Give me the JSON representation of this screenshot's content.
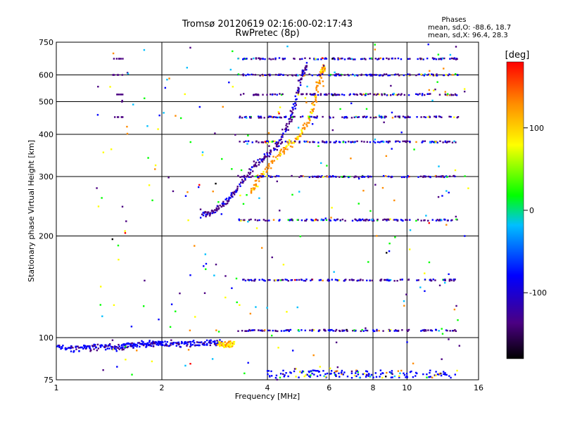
{
  "chart_data": {
    "type": "scatter",
    "title": "Tromsø 20120619 02:16:00-02:17:43",
    "subtitle": "RwPretec (8p)",
    "xlabel": "Frequency [MHz]",
    "ylabel": "Stationary phase Virtual Height [km]",
    "xscale": "log",
    "yscale": "log",
    "xlim": [
      1,
      16
    ],
    "ylim": [
      75,
      750
    ],
    "xticks": [
      1,
      2,
      4,
      6,
      8,
      10,
      16
    ],
    "yticks": [
      75,
      100,
      200,
      300,
      400,
      500,
      600,
      750
    ],
    "xgrid": [
      2,
      4,
      6,
      8,
      10
    ],
    "ygrid": [
      100,
      200,
      300,
      400,
      500,
      600
    ],
    "grid": true,
    "info": {
      "heading": "Phases",
      "line_o": "mean, sd,O: -88.6, 18.7",
      "line_x": "mean, sd,X:  96.4, 28.3"
    },
    "colorbar": {
      "label": "[deg]",
      "range": [
        -180,
        180
      ],
      "ticks": [
        100,
        0,
        -100
      ],
      "colormap": [
        "#000000",
        "#4b0082",
        "#0000ff",
        "#00bfff",
        "#00ff00",
        "#ffff00",
        "#ff8c00",
        "#ff0000"
      ]
    },
    "series": [
      {
        "o_trace_low": [
          [
            1.0,
            94
          ],
          [
            1.1,
            93
          ],
          [
            1.2,
            93
          ],
          [
            1.3,
            94
          ],
          [
            1.4,
            94
          ],
          [
            1.5,
            93
          ],
          [
            1.6,
            95
          ],
          [
            1.7,
            95
          ],
          [
            1.8,
            96
          ],
          [
            1.9,
            96
          ],
          [
            2.0,
            96
          ],
          [
            2.2,
            96
          ],
          [
            2.4,
            96
          ],
          [
            2.6,
            96
          ],
          [
            2.8,
            97
          ],
          [
            2.95,
            97
          ]
        ],
        "phase": -95
      },
      {
        "x_trace_low": [
          [
            2.9,
            96
          ],
          [
            3.0,
            95
          ],
          [
            3.1,
            95
          ],
          [
            3.2,
            96
          ]
        ],
        "phase": 100
      },
      {
        "o_trace_F": [
          [
            2.6,
            232
          ],
          [
            2.8,
            236
          ],
          [
            3.0,
            248
          ],
          [
            3.2,
            265
          ],
          [
            3.4,
            290
          ],
          [
            3.7,
            325
          ],
          [
            4.0,
            345
          ],
          [
            4.3,
            375
          ],
          [
            4.6,
            430
          ],
          [
            4.8,
            500
          ],
          [
            5.0,
            600
          ],
          [
            5.2,
            640
          ]
        ],
        "phase": -110
      },
      {
        "x_trace_F": [
          [
            3.6,
            270
          ],
          [
            3.8,
            300
          ],
          [
            4.2,
            340
          ],
          [
            4.6,
            370
          ],
          [
            5.0,
            400
          ],
          [
            5.3,
            450
          ],
          [
            5.5,
            520
          ],
          [
            5.7,
            600
          ],
          [
            5.8,
            640
          ]
        ],
        "phase": 110
      },
      {
        "interference_rows": [
          105,
          148,
          223,
          300,
          380,
          450,
          525,
          600,
          670
        ],
        "range_mhz": [
          3.3,
          14.0
        ],
        "phase": -105
      }
    ]
  }
}
